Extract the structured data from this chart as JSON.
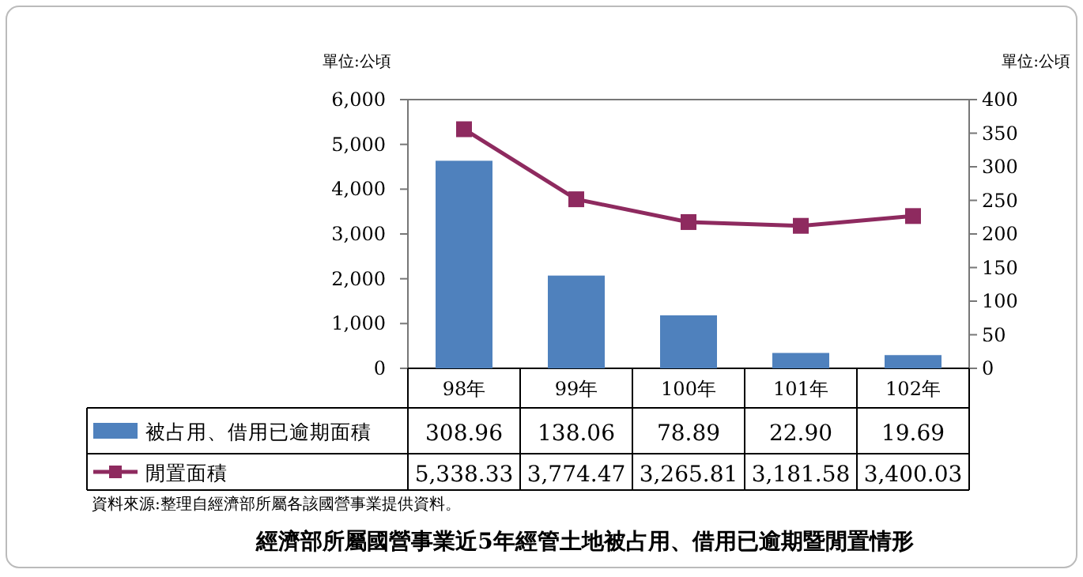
{
  "chart_data": {
    "type": "bar",
    "title": "經濟部所屬國營事業近5年經管土地被占用、借用已逾期暨閒置情形",
    "annotations": [
      "資料來源:整理自經濟部所屬各該國營事業提供資料。"
    ],
    "ylabel": "單位:公頃",
    "y2label": "單位:公頃",
    "categories": [
      "98年",
      "99年",
      "100年",
      "101年",
      "102年"
    ],
    "series": [
      {
        "name": "被占用、借用已逾期面積",
        "axis": "y2",
        "color": "#4f81bd",
        "values": [
          308.96,
          138.06,
          78.89,
          22.9,
          19.69
        ],
        "value_labels": [
          "308.96",
          "138.06",
          "78.89",
          "22.90",
          "19.69"
        ]
      },
      {
        "name": "閒置面積",
        "type": "line",
        "color": "#8e2a5f",
        "marker": "square",
        "values": [
          5338.33,
          3774.47,
          3265.81,
          3181.58,
          3400.03
        ],
        "value_labels": [
          "5,338.33",
          "3,774.47",
          "3,265.81",
          "3,181.58",
          "3,400.03"
        ]
      }
    ],
    "ylim": [
      0,
      6000
    ],
    "yticks": [
      0,
      {
        "value": 1000,
        "label": "1,000"
      },
      {
        "value": 2000,
        "label": "2,000"
      },
      {
        "value": 3000,
        "label": "3,000"
      },
      {
        "value": 4000,
        "label": "4,000"
      },
      {
        "value": 5000,
        "label": "5,000"
      },
      {
        "value": 6000,
        "label": "6,000"
      }
    ],
    "y2lim": [
      0,
      400
    ],
    "y2ticks": [
      0,
      50,
      100,
      150,
      200,
      250,
      300,
      350,
      400
    ],
    "legend": "bottom left",
    "grid": false
  }
}
